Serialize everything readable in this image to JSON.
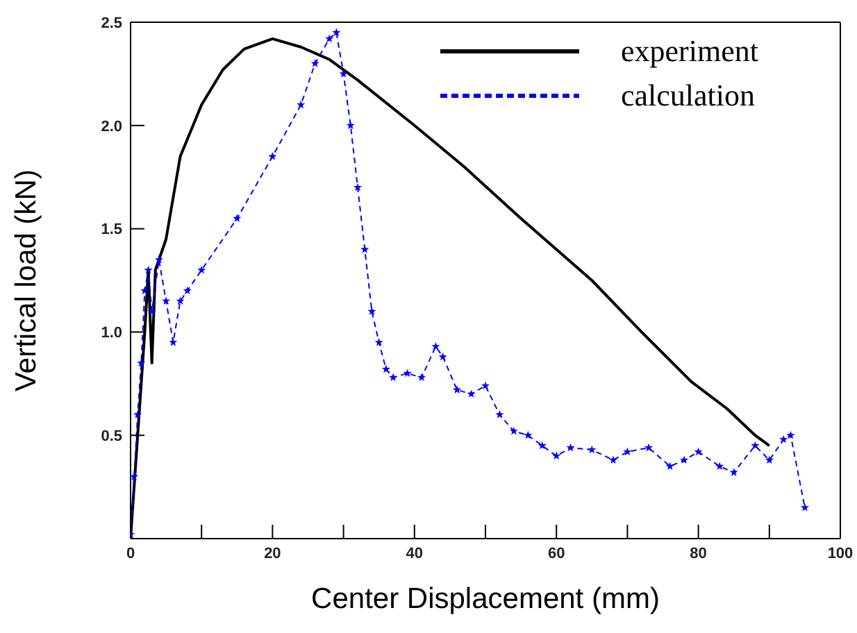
{
  "chart_data": {
    "type": "line",
    "xlabel": "Center Displacement (mm)",
    "ylabel": "Vertical load (kN)",
    "xlim": [
      0,
      100
    ],
    "ylim": [
      0,
      2.5
    ],
    "xticks": [
      0,
      {
        "value": 10,
        "label": null
      },
      20,
      {
        "value": 30,
        "label": null
      },
      40,
      {
        "value": 50,
        "label": null
      },
      60,
      {
        "value": 70,
        "label": null
      },
      80,
      {
        "value": 90,
        "label": null
      },
      100
    ],
    "yticks": [
      0.5,
      {
        "value": 1,
        "label": "1.0"
      },
      1.5,
      {
        "value": 2,
        "label": "2.0"
      },
      2.5
    ],
    "grid": false,
    "legend": "top right",
    "series": [
      {
        "name": "experiment",
        "color": "#000000",
        "line_style": "solid",
        "marker": "none",
        "x": [
          0,
          1,
          2,
          2.5,
          3,
          3.5,
          5,
          7,
          10,
          13,
          16,
          20,
          24,
          28,
          32,
          40,
          47,
          55,
          65,
          72,
          79,
          84,
          88,
          90
        ],
        "values": [
          0,
          0.5,
          1.0,
          1.3,
          0.85,
          1.3,
          1.45,
          1.85,
          2.1,
          2.27,
          2.37,
          2.42,
          2.38,
          2.32,
          2.22,
          2.0,
          1.8,
          1.55,
          1.25,
          1.0,
          0.76,
          0.63,
          0.5,
          0.45
        ]
      },
      {
        "name": "calculation",
        "color": "#0000ff",
        "line_style": "dashed",
        "marker": "star",
        "x": [
          0,
          0.5,
          1,
          1.5,
          2,
          2.5,
          3,
          4,
          5,
          6,
          7,
          8,
          10,
          15,
          20,
          24,
          26,
          28,
          29,
          30,
          31,
          32,
          33,
          34,
          35,
          36,
          37,
          39,
          41,
          43,
          44,
          46,
          48,
          50,
          52,
          54,
          56,
          58,
          60,
          62,
          65,
          68,
          70,
          73,
          76,
          78,
          80,
          83,
          85,
          88,
          90,
          92,
          93,
          95
        ],
        "values": [
          0.02,
          0.3,
          0.6,
          0.85,
          1.2,
          1.3,
          1.1,
          1.35,
          1.15,
          0.95,
          1.15,
          1.2,
          1.3,
          1.55,
          1.85,
          2.1,
          2.3,
          2.42,
          2.45,
          2.25,
          2.0,
          1.7,
          1.4,
          1.1,
          0.95,
          0.82,
          0.78,
          0.8,
          0.78,
          0.93,
          0.88,
          0.72,
          0.7,
          0.74,
          0.6,
          0.52,
          0.5,
          0.45,
          0.4,
          0.44,
          0.43,
          0.38,
          0.42,
          0.44,
          0.35,
          0.38,
          0.42,
          0.35,
          0.32,
          0.45,
          0.38,
          0.48,
          0.5,
          0.15
        ]
      }
    ]
  }
}
